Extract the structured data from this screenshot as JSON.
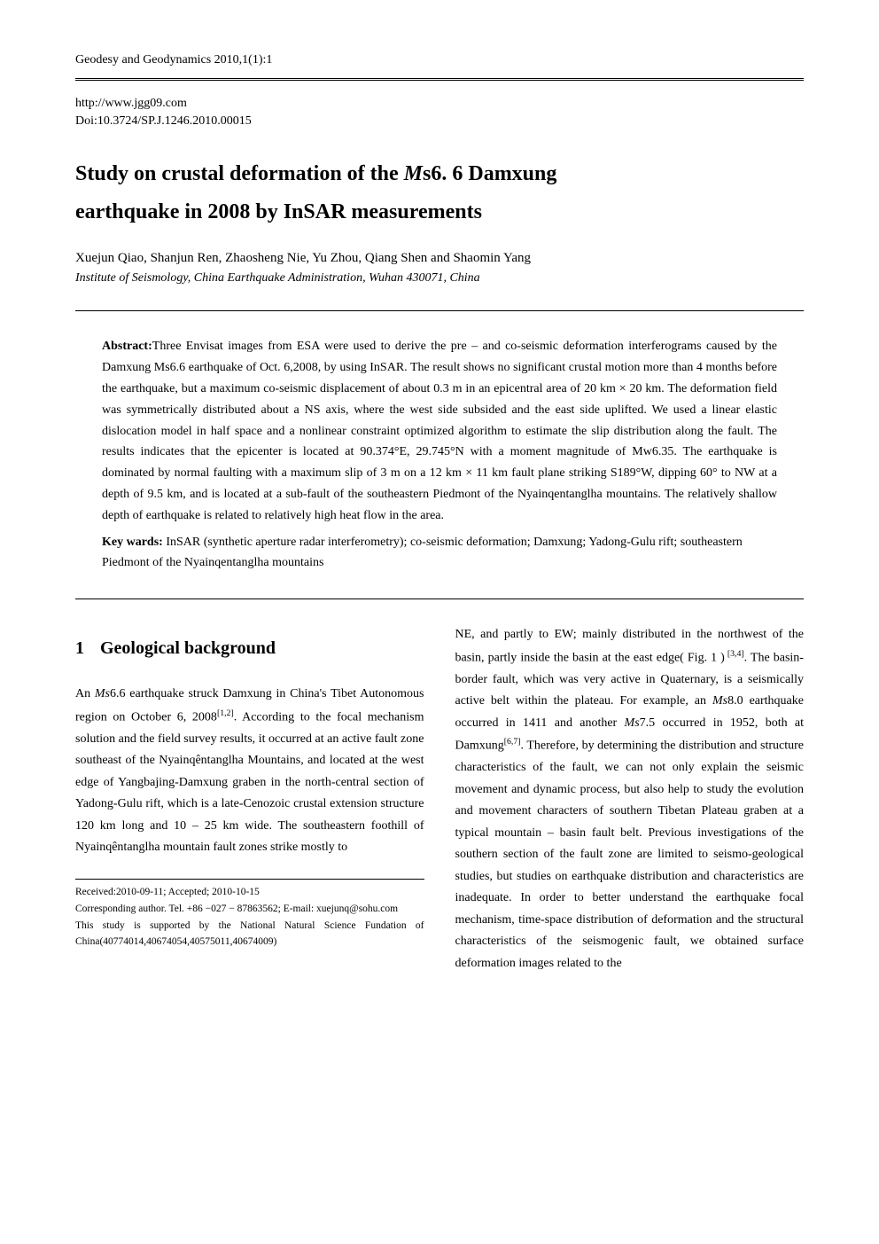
{
  "runningHeader": "Geodesy and Geodynamics   2010,1(1):1",
  "url": "http://www.jgg09.com",
  "doi": "Doi:10.3724/SP.J.1246.2010.00015",
  "title": "Study on crustal deformation of the Ms6.6 Damxung earthquake in 2008 by InSAR measurements",
  "authors": "Xuejun Qiao, Shanjun Ren, Zhaosheng Nie, Yu Zhou, Qiang Shen and Shaomin Yang",
  "affiliation": "Institute of Seismology, China Earthquake Administration, Wuhan 430071, China",
  "abstractLabel": "Abstract:",
  "abstractText": "Three Envisat images from ESA were used to derive the pre – and co-seismic deformation interferograms caused by the Damxung Ms6.6 earthquake of Oct. 6,2008, by using InSAR. The result shows no significant crustal motion more than 4 months before the earthquake, but a maximum co-seismic displacement of about 0.3 m in an epicentral area of 20 km × 20 km. The deformation field was symmetrically distributed about a NS axis, where the west side subsided and the east side uplifted. We used a linear elastic dislocation model in half space and a nonlinear constraint optimized algorithm to estimate the slip distribution along the fault. The results indicates that the epicenter is located at 90.374°E, 29.745°N with a moment magnitude of Mw6.35. The earthquake is dominated by normal faulting with a maximum slip of 3 m on a 12 km × 11 km fault plane striking S189°W, dipping 60° to NW at a depth of 9.5 km, and is located at a sub-fault of the southeastern Piedmont of the Nyainqentanglha mountains. The relatively shallow depth of earthquake is related to relatively high heat flow in the area.",
  "keywordsLabel": "Key wards:",
  "keywordsText": " InSAR (synthetic aperture radar interferometry); co-seismic deformation; Damxung; Yadong-Gulu rift; southeastern Piedmont of the Nyainqentanglha mountains",
  "section1": {
    "number": "1",
    "title": "Geological background"
  },
  "column1": {
    "para1a": "An ",
    "para1b": "Ms",
    "para1c": "6.6 earthquake struck Damxung in China's Tibet Autonomous region on October 6, 2008",
    "para1sup": "[1,2]",
    "para1d": ". According to the focal mechanism solution and the field survey results, it occurred at an active fault zone southeast of the Nyainqêntanglha Mountains, and located at the west edge of Yangbajing-Damxung graben in the north-central section of Yadong-Gulu rift, which is a late-Cenozoic crustal extension structure 120 km long and 10 – 25 km wide. The southeastern foothill of Nyainqêntanglha mountain fault zones strike mostly to"
  },
  "column2": {
    "para1a": "NE, and partly to EW; mainly distributed in the northwest of the basin, partly inside the basin at the east edge( Fig. 1 )",
    "para1sup1": " [3,4]",
    "para1b": ". The basin-border fault, which was very active in Quaternary, is a seismically active belt within the plateau. For example, an ",
    "para1ms1": "Ms",
    "para1c": "8.0 earthquake occurred in 1411 and another ",
    "para1ms2": "Ms",
    "para1d": "7.5 occurred in 1952, both at Damxung",
    "para1sup2": "[6,7]",
    "para1e": ". Therefore, by determining the distribution and structure characteristics of the fault, we can not only explain the seismic movement and dynamic process, but also help to study the evolution and movement characters of southern Tibetan Plateau graben at a typical mountain – basin fault belt. Previous investigations of the southern section of the fault zone are limited to seismo-geological studies, but studies on earthquake distribution and characteristics are inadequate. In order to better understand the earthquake focal mechanism, time-space distribution of deformation and the structural characteristics of the seismogenic fault, we obtained surface deformation images related to the"
  },
  "footnotes": {
    "received": "Received:2010-09-11; Accepted; 2010-10-15",
    "corresponding": "Corresponding author. Tel. +86 −027 − 87863562; E-mail: xuejunq@sohu.com",
    "funding": "This study is supported by the National Natural Science Fundation of China(40774014,40674054,40575011,40674009)"
  }
}
